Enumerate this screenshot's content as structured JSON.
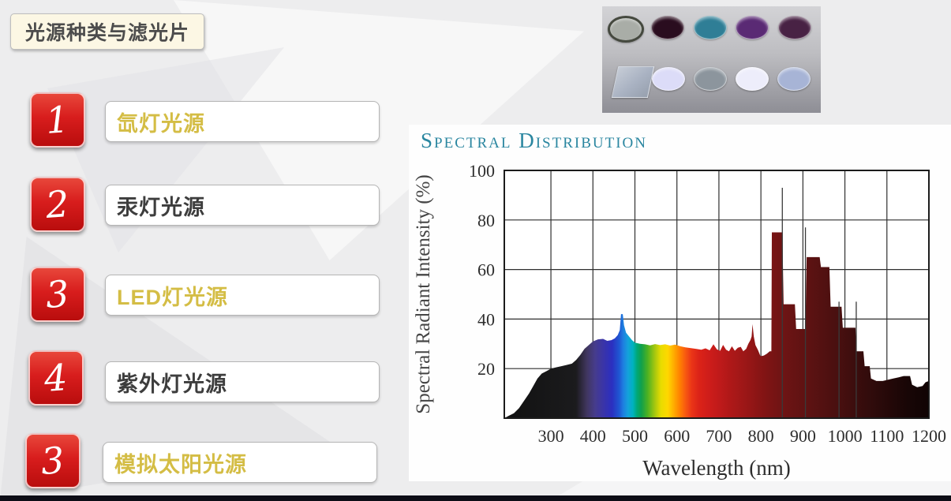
{
  "slide": {
    "title": "光源种类与滤光片",
    "items": [
      {
        "number": "1",
        "label": "氙灯光源",
        "color": "#d4bd45"
      },
      {
        "number": "2",
        "label": "汞灯光源",
        "color": "#3d3d3d"
      },
      {
        "number": "3",
        "label": "LED灯光源",
        "color": "#d4bd45"
      },
      {
        "number": "4",
        "label": "紫外灯光源",
        "color": "#3d3d3d"
      },
      {
        "number": "3",
        "label": "模拟太阳光源",
        "color": "#d4bd45"
      }
    ],
    "colors": {
      "badge_red": "#d81d1d",
      "accent_yellow": "#d4bd45",
      "text_dark": "#3d3d3d",
      "title_box_bg": "#fcf7e4",
      "slide_bg": "#ededee",
      "bottom_bar": "#0d0d16"
    }
  },
  "filters_photo": {
    "description": "photo of optical filters, two rows",
    "row1_discs": [
      "#a9ada7",
      "#2a0d1f",
      "#2f7e96",
      "#5a2a74",
      "#482244"
    ],
    "row1_first_rim": "#45493f",
    "row2_plate": "#a9b2c2",
    "row2_discs": [
      "#dcdcf8",
      "#8c959d",
      "#ededfb",
      "#a7b4d6"
    ]
  },
  "chart_data": {
    "type": "area",
    "title": "Spectral Distribution",
    "xlabel": "Wavelength (nm)",
    "ylabel": "Spectral Radiant Intensity (%)",
    "xlim": [
      189,
      1200
    ],
    "ylim": [
      0,
      100
    ],
    "x_ticks": [
      300,
      400,
      500,
      600,
      700,
      800,
      900,
      1000,
      1100,
      1200
    ],
    "y_ticks": [
      20,
      40,
      60,
      80,
      100
    ],
    "grid": true,
    "grid_color": "#2f2f2f",
    "points": [
      [
        189,
        0
      ],
      [
        200,
        1
      ],
      [
        212,
        2
      ],
      [
        224,
        4
      ],
      [
        236,
        7
      ],
      [
        248,
        10
      ],
      [
        258,
        13
      ],
      [
        268,
        16
      ],
      [
        278,
        18
      ],
      [
        290,
        19
      ],
      [
        300,
        20
      ],
      [
        312,
        20.5
      ],
      [
        325,
        21
      ],
      [
        338,
        21.5
      ],
      [
        350,
        22
      ],
      [
        360,
        23.5
      ],
      [
        370,
        25.5
      ],
      [
        380,
        28
      ],
      [
        390,
        29.5
      ],
      [
        400,
        31
      ],
      [
        412,
        31.8
      ],
      [
        424,
        32
      ],
      [
        434,
        31.2
      ],
      [
        444,
        31.5
      ],
      [
        452,
        32.2
      ],
      [
        459,
        33.5
      ],
      [
        464,
        35.5
      ],
      [
        467,
        42
      ],
      [
        471,
        42
      ],
      [
        474,
        37.5
      ],
      [
        479,
        34.5
      ],
      [
        486,
        33
      ],
      [
        493,
        31.5
      ],
      [
        500,
        30.5
      ],
      [
        512,
        30
      ],
      [
        524,
        29.8
      ],
      [
        536,
        29.4
      ],
      [
        548,
        29.9
      ],
      [
        560,
        29.5
      ],
      [
        572,
        29.8
      ],
      [
        584,
        29.3
      ],
      [
        596,
        29.7
      ],
      [
        608,
        29
      ],
      [
        620,
        28.6
      ],
      [
        632,
        28.3
      ],
      [
        645,
        28
      ],
      [
        658,
        27.6
      ],
      [
        668,
        28.2
      ],
      [
        678,
        27.4
      ],
      [
        687,
        29.8
      ],
      [
        695,
        27.8
      ],
      [
        703,
        27.2
      ],
      [
        710,
        29.6
      ],
      [
        717,
        27.6
      ],
      [
        724,
        27
      ],
      [
        731,
        29
      ],
      [
        738,
        27.2
      ],
      [
        745,
        28.4
      ],
      [
        752,
        28.8
      ],
      [
        758,
        27
      ],
      [
        765,
        28
      ],
      [
        770,
        30
      ],
      [
        775,
        31.5
      ],
      [
        778,
        33
      ],
      [
        780,
        38
      ],
      [
        783,
        33
      ],
      [
        787,
        29.5
      ],
      [
        793,
        27.5
      ],
      [
        799,
        25
      ],
      [
        807,
        25.3
      ],
      [
        814,
        26
      ],
      [
        821,
        27
      ],
      [
        825,
        27
      ],
      [
        826,
        75
      ],
      [
        851,
        75
      ],
      [
        854,
        46
      ],
      [
        881,
        46
      ],
      [
        884,
        36
      ],
      [
        906,
        36
      ],
      [
        909,
        65
      ],
      [
        940,
        65
      ],
      [
        943,
        61
      ],
      [
        963,
        61
      ],
      [
        966,
        45
      ],
      [
        992,
        45
      ],
      [
        995,
        36.5
      ],
      [
        1025,
        36.5
      ],
      [
        1028,
        27
      ],
      [
        1044,
        27
      ],
      [
        1047,
        21
      ],
      [
        1059,
        21
      ],
      [
        1062,
        16
      ],
      [
        1075,
        15
      ],
      [
        1090,
        15
      ],
      [
        1103,
        15.5
      ],
      [
        1115,
        16
      ],
      [
        1128,
        16.5
      ],
      [
        1140,
        17
      ],
      [
        1155,
        17
      ],
      [
        1160,
        13.5
      ],
      [
        1172,
        12.5
      ],
      [
        1185,
        13
      ],
      [
        1192,
        14.5
      ],
      [
        1200,
        15
      ]
    ],
    "spike_lines": [
      [
        851,
        93
      ],
      [
        906,
        77
      ],
      [
        986,
        47
      ],
      [
        1027,
        47
      ]
    ],
    "spectrum_colors": [
      [
        189,
        "#111111"
      ],
      [
        360,
        "#1b1b1d"
      ],
      [
        385,
        "#40365e"
      ],
      [
        405,
        "#463c8c"
      ],
      [
        425,
        "#3a34a8"
      ],
      [
        445,
        "#2b2fc0"
      ],
      [
        462,
        "#1f55d2"
      ],
      [
        472,
        "#1e7ee0"
      ],
      [
        483,
        "#15a0dc"
      ],
      [
        495,
        "#00b2c0"
      ],
      [
        505,
        "#00a877"
      ],
      [
        515,
        "#10a04c"
      ],
      [
        530,
        "#4cb122"
      ],
      [
        548,
        "#a8c80f"
      ],
      [
        562,
        "#e8dc00"
      ],
      [
        578,
        "#ffd800"
      ],
      [
        592,
        "#ffae00"
      ],
      [
        606,
        "#ff8300"
      ],
      [
        620,
        "#f85a10"
      ],
      [
        635,
        "#ea3517"
      ],
      [
        652,
        "#dc2318"
      ],
      [
        675,
        "#cf1d1a"
      ],
      [
        700,
        "#c01a1a"
      ],
      [
        730,
        "#ad1818"
      ],
      [
        760,
        "#9d1717"
      ],
      [
        790,
        "#8c1515"
      ],
      [
        820,
        "#7c1414"
      ],
      [
        850,
        "#6f1414"
      ],
      [
        880,
        "#661313"
      ],
      [
        910,
        "#5e1212"
      ],
      [
        950,
        "#521111"
      ],
      [
        990,
        "#470f0f"
      ],
      [
        1030,
        "#3a0d0d"
      ],
      [
        1070,
        "#2e0b0b"
      ],
      [
        1110,
        "#230808"
      ],
      [
        1150,
        "#180606"
      ],
      [
        1200,
        "#100404"
      ]
    ],
    "legend": "none"
  }
}
